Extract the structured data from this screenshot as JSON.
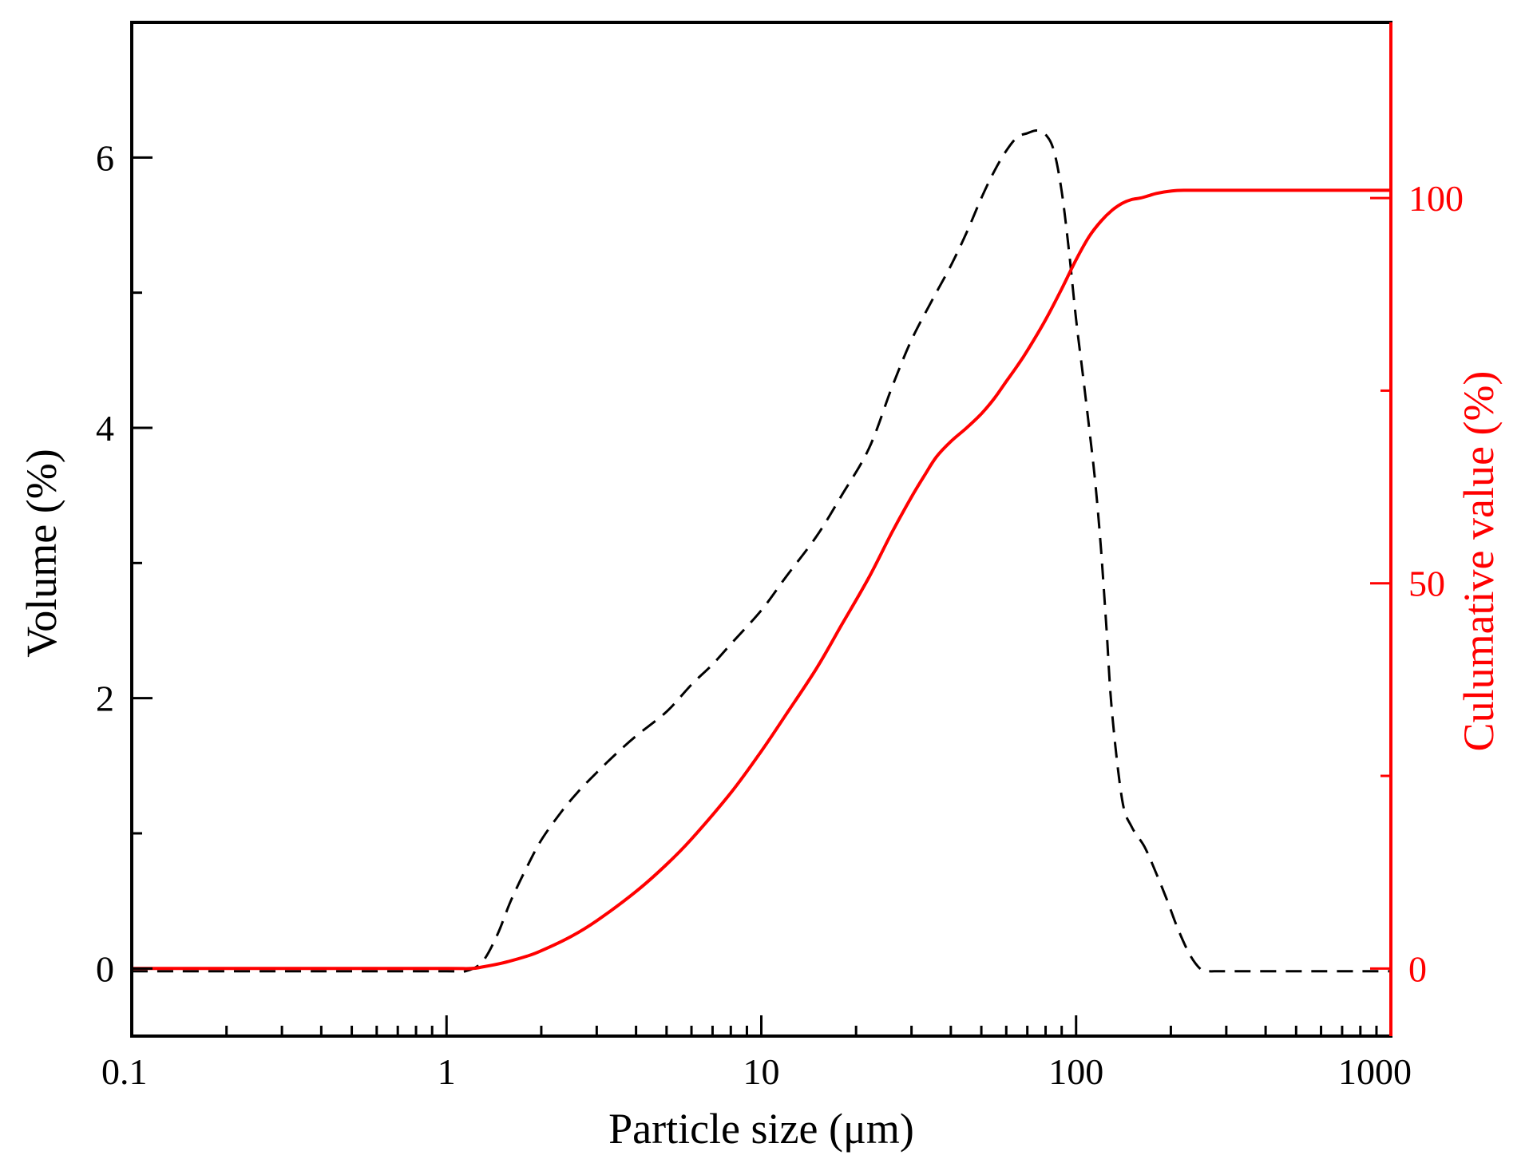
{
  "chart_data": {
    "type": "line",
    "title": "",
    "xlabel": "Particle size (μm)",
    "ylabel": "Volume (%)",
    "y2label": "Culumative value (%)",
    "xscale": "log",
    "xlim": [
      0.1,
      1000
    ],
    "ylim": [
      -0.5,
      7.0
    ],
    "y2lim": [
      -8.77,
      122.8
    ],
    "grid": false,
    "legend": "none",
    "colors": {
      "frame": "#000000",
      "volume": "#000000",
      "cumulative": "#ff0000",
      "y2_axis": "#ff0000"
    },
    "x_major_ticks": [
      0.1,
      1,
      10,
      100,
      1000
    ],
    "x_tick_labels": [
      "0.1",
      "1",
      "10",
      "100",
      "1000"
    ],
    "y_major_ticks": [
      0,
      2,
      4,
      6
    ],
    "y_tick_labels": [
      "0",
      "2",
      "4",
      "6"
    ],
    "y_minor_ticks": [
      1,
      3,
      5
    ],
    "y2_major_ticks": [
      0,
      50,
      100
    ],
    "y2_tick_labels": [
      "0",
      "50",
      "100"
    ],
    "y2_minor_ticks": [
      25,
      75
    ],
    "series": [
      {
        "name": "Volume (%)",
        "axis": "left",
        "style": "dashed",
        "color": "#000000",
        "x": [
          0.1,
          0.5,
          1.0,
          1.15,
          1.3,
          1.45,
          1.6,
          1.8,
          2.0,
          2.3,
          2.6,
          3.0,
          3.5,
          4.0,
          5.0,
          6.0,
          7.0,
          8.0,
          10.0,
          12.0,
          15.0,
          18.0,
          22.0,
          26.0,
          30.0,
          35.0,
          40.0,
          45.0,
          50.0,
          55.0,
          60.0,
          65.0,
          70.0,
          75.0,
          80.0,
          85.0,
          90.0,
          95.0,
          100.0,
          105.0,
          110.0,
          115.0,
          120.0,
          125.0,
          130.0,
          140.0,
          150.0,
          165.0,
          180.0,
          195.0,
          210.0,
          230.0,
          250.0,
          265.0,
          280.0,
          300.0,
          500.0,
          1000.0
        ],
        "values": [
          -0.02,
          -0.02,
          -0.02,
          -0.02,
          0.05,
          0.25,
          0.5,
          0.75,
          0.95,
          1.15,
          1.3,
          1.45,
          1.6,
          1.72,
          1.9,
          2.1,
          2.25,
          2.4,
          2.65,
          2.9,
          3.2,
          3.5,
          3.85,
          4.3,
          4.65,
          4.95,
          5.2,
          5.45,
          5.7,
          5.9,
          6.05,
          6.15,
          6.18,
          6.2,
          6.17,
          6.05,
          5.75,
          5.3,
          4.8,
          4.4,
          4.0,
          3.6,
          3.1,
          2.5,
          1.9,
          1.25,
          1.05,
          0.9,
          0.7,
          0.5,
          0.3,
          0.1,
          -0.01,
          -0.02,
          -0.02,
          -0.02,
          -0.02,
          -0.02
        ]
      },
      {
        "name": "Culumative value (%)",
        "axis": "right",
        "style": "solid",
        "color": "#ff0000",
        "x": [
          0.1,
          0.5,
          1.0,
          1.2,
          1.3,
          1.5,
          1.8,
          2.0,
          2.5,
          3.0,
          4.0,
          5.0,
          6.0,
          8.0,
          10.0,
          12.0,
          15.0,
          18.0,
          22.0,
          26.0,
          30.0,
          33.0,
          36.0,
          40.0,
          45.0,
          50.0,
          55.0,
          60.0,
          65.0,
          70.0,
          80.0,
          90.0,
          100.0,
          110.0,
          120.0,
          130.0,
          140.0,
          150.0,
          160.0,
          170.0,
          180.0,
          200.0,
          220.0,
          300.0,
          500.0,
          1000.0
        ],
        "values": [
          0,
          0,
          0,
          0,
          0.2,
          0.7,
          1.6,
          2.3,
          4.2,
          6.2,
          10.0,
          13.5,
          16.8,
          22.8,
          28.2,
          33.0,
          39.0,
          44.6,
          50.8,
          56.6,
          61.2,
          64.0,
          66.4,
          68.4,
          70.2,
          72.0,
          74.0,
          76.2,
          78.2,
          80.2,
          84.2,
          88.2,
          92.0,
          95.0,
          97.0,
          98.4,
          99.3,
          99.8,
          100.0,
          100.3,
          100.6,
          100.9,
          101.0,
          101.0,
          101.0,
          101.0
        ]
      }
    ]
  }
}
